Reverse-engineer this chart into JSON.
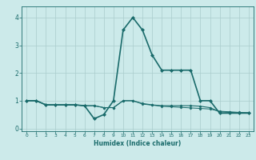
{
  "xlabel": "Humidex (Indice chaleur)",
  "background_color": "#cceaea",
  "grid_color": "#aacccc",
  "line_color": "#1a6b6b",
  "xlim": [
    -0.5,
    23.5
  ],
  "ylim": [
    -0.1,
    4.4
  ],
  "yticks": [
    0,
    1,
    2,
    3,
    4
  ],
  "xticks": [
    0,
    1,
    2,
    3,
    4,
    5,
    6,
    7,
    8,
    9,
    10,
    11,
    12,
    13,
    14,
    15,
    16,
    17,
    18,
    19,
    20,
    21,
    22,
    23
  ],
  "series": [
    {
      "x": [
        0,
        1,
        2,
        3,
        4,
        5,
        6,
        7,
        8,
        9,
        10,
        11,
        12,
        13,
        14,
        15,
        16,
        17,
        18,
        19,
        20,
        21,
        22,
        23
      ],
      "y": [
        1.0,
        1.0,
        0.85,
        0.85,
        0.85,
        0.85,
        0.82,
        0.35,
        0.5,
        1.0,
        3.55,
        4.0,
        3.55,
        2.65,
        2.1,
        2.1,
        2.1,
        2.1,
        1.0,
        1.0,
        0.55,
        0.55,
        0.55,
        0.55
      ],
      "marker": "D",
      "markersize": 2.0,
      "linewidth": 1.2
    },
    {
      "x": [
        0,
        1,
        2,
        3,
        4,
        5,
        6,
        7,
        8,
        9,
        10,
        11,
        12,
        13,
        14,
        15,
        16,
        17,
        18,
        19,
        20,
        21,
        22,
        23
      ],
      "y": [
        1.0,
        1.0,
        0.85,
        0.85,
        0.85,
        0.85,
        0.82,
        0.82,
        0.75,
        0.75,
        1.0,
        1.0,
        0.9,
        0.85,
        0.82,
        0.82,
        0.82,
        0.82,
        0.8,
        0.75,
        0.6,
        0.58,
        0.56,
        0.56
      ],
      "marker": "D",
      "markersize": 1.5,
      "linewidth": 0.8
    },
    {
      "x": [
        0,
        1,
        2,
        3,
        4,
        5,
        6,
        7,
        8,
        9,
        10,
        11,
        12,
        13,
        14,
        15,
        16,
        17,
        18,
        19,
        20,
        21,
        22,
        23
      ],
      "y": [
        1.0,
        1.0,
        0.85,
        0.85,
        0.85,
        0.85,
        0.82,
        0.82,
        0.75,
        0.75,
        1.0,
        1.0,
        0.88,
        0.84,
        0.8,
        0.78,
        0.76,
        0.74,
        0.72,
        0.7,
        0.62,
        0.6,
        0.58,
        0.57
      ],
      "marker": "D",
      "markersize": 1.5,
      "linewidth": 0.7
    }
  ]
}
